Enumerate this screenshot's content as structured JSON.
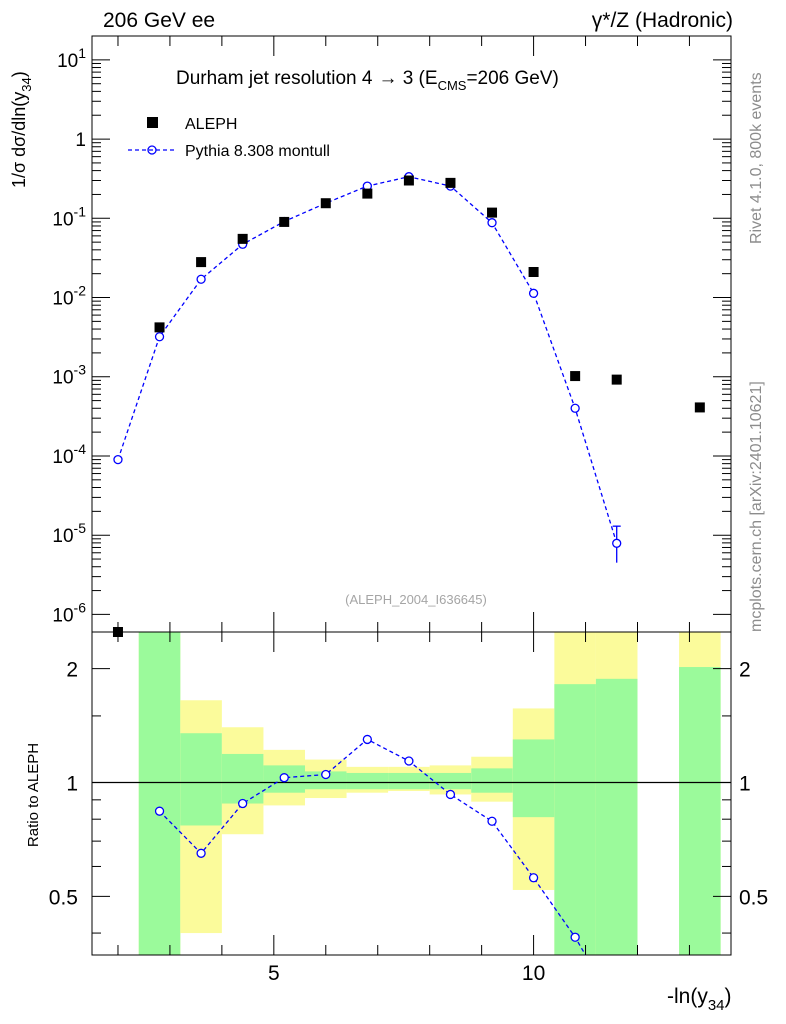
{
  "header": {
    "left": "206 GeV ee",
    "right": "γ*/Z (Hadronic)"
  },
  "side": {
    "rivet": "Rivet 4.1.0,  800k events",
    "mcplots": "mcplots.cern.ch [arXiv:2401.10621]"
  },
  "chart_data": [
    {
      "type": "scatter",
      "title": "Durham jet resolution 4 → 3 (E_CMS=206 GeV)",
      "title_parts": {
        "main": "Durham jet resolution 4",
        "arrow": "→",
        "mid": " 3 (E",
        "sub": "CMS",
        "end": "=206 GeV)"
      },
      "ylabel": "1/σ dσ/dln(y34)",
      "ylabel_parts": {
        "main": "1/σ  dσ/dln(y",
        "sub": "34",
        "end": ")"
      },
      "yscale": "log",
      "ylim": [
        6e-07,
        20
      ],
      "xlim": [
        1.5,
        13.8
      ],
      "ytick_labels": [
        {
          "m": "10",
          "e": "1"
        },
        {
          "m": "1",
          "e": ""
        },
        {
          "m": "10",
          "e": "-1"
        },
        {
          "m": "10",
          "e": "-2"
        },
        {
          "m": "10",
          "e": "-3"
        },
        {
          "m": "10",
          "e": "-4"
        },
        {
          "m": "10",
          "e": "-5"
        },
        {
          "m": "10",
          "e": "-6"
        }
      ],
      "watermark": "(ALEPH_2004_I636645)",
      "legend": {
        "placement": "top-left",
        "data_label": "ALEPH",
        "mc_label": "Pythia 8.308 montull"
      },
      "series": [
        {
          "name": "ALEPH",
          "x": [
            2.0,
            2.8,
            3.6,
            4.4,
            5.2,
            6.0,
            6.8,
            7.6,
            8.4,
            9.2,
            10.0,
            10.8,
            11.6,
            13.2
          ],
          "y": [
            6e-07,
            0.0042,
            0.028,
            0.055,
            0.09,
            0.155,
            0.205,
            0.3,
            0.28,
            0.118,
            0.021,
            0.00102,
            0.00092,
            0.00041
          ]
        },
        {
          "name": "Pythia 8.308 montull",
          "x": [
            2.0,
            2.8,
            3.6,
            4.4,
            5.2,
            6.0,
            6.8,
            7.6,
            8.4,
            9.2,
            10.0,
            10.8,
            11.6
          ],
          "y": [
            9e-05,
            0.0032,
            0.017,
            0.047,
            0.091,
            0.155,
            0.255,
            0.335,
            0.255,
            0.088,
            0.0113,
            0.0004,
            7.9e-06
          ]
        }
      ]
    },
    {
      "type": "line",
      "ylabel": "Ratio to ALEPH",
      "xlabel": "-ln(y34)",
      "xlabel_parts": {
        "main": "-ln(y",
        "sub": "34",
        "end": ")"
      },
      "yscale": "log",
      "ylim": [
        0.35,
        2.5
      ],
      "xlim": [
        1.5,
        13.8
      ],
      "xticks": [
        5,
        10
      ],
      "xtick_labels": [
        "5",
        "10"
      ],
      "yticks": [
        0.5,
        1,
        2
      ],
      "ytick_labels": [
        "0.5",
        "1",
        "2"
      ],
      "bands": [
        {
          "x0": 2.4,
          "x1": 3.2,
          "green": [
            0.35,
            2.5
          ],
          "yellow": [
            0.35,
            2.5
          ]
        },
        {
          "x0": 3.2,
          "x1": 4.0,
          "green": [
            0.77,
            1.35
          ],
          "yellow": [
            0.4,
            1.65
          ]
        },
        {
          "x0": 4.0,
          "x1": 4.8,
          "green": [
            0.88,
            1.19
          ],
          "yellow": [
            0.73,
            1.4
          ]
        },
        {
          "x0": 4.8,
          "x1": 5.6,
          "green": [
            0.94,
            1.11
          ],
          "yellow": [
            0.87,
            1.22
          ]
        },
        {
          "x0": 5.6,
          "x1": 6.4,
          "green": [
            0.96,
            1.07
          ],
          "yellow": [
            0.91,
            1.15
          ]
        },
        {
          "x0": 6.4,
          "x1": 7.2,
          "green": [
            0.96,
            1.06
          ],
          "yellow": [
            0.94,
            1.1
          ]
        },
        {
          "x0": 7.2,
          "x1": 8.0,
          "green": [
            0.96,
            1.06
          ],
          "yellow": [
            0.95,
            1.1
          ]
        },
        {
          "x0": 8.0,
          "x1": 8.8,
          "green": [
            0.96,
            1.06
          ],
          "yellow": [
            0.93,
            1.11
          ]
        },
        {
          "x0": 8.8,
          "x1": 9.6,
          "green": [
            0.94,
            1.09
          ],
          "yellow": [
            0.89,
            1.17
          ]
        },
        {
          "x0": 9.6,
          "x1": 10.4,
          "green": [
            0.81,
            1.3
          ],
          "yellow": [
            0.52,
            1.57
          ]
        },
        {
          "x0": 10.4,
          "x1": 11.2,
          "green": [
            0.35,
            1.82
          ],
          "yellow": [
            0.35,
            2.5
          ]
        },
        {
          "x0": 11.2,
          "x1": 12.0,
          "green": [
            0.35,
            1.88
          ],
          "yellow": [
            0.35,
            2.5
          ]
        },
        {
          "x0": 12.8,
          "x1": 13.6,
          "green": [
            0.35,
            2.02
          ],
          "yellow": [
            0.35,
            2.5
          ]
        }
      ],
      "ratio": {
        "x": [
          2.8,
          3.6,
          4.4,
          5.2,
          6.0,
          6.8,
          7.6,
          8.4,
          9.2,
          10.0,
          10.8
        ],
        "y": [
          0.84,
          0.65,
          0.88,
          1.03,
          1.05,
          1.3,
          1.14,
          0.93,
          0.79,
          0.56,
          0.39
        ]
      }
    }
  ],
  "colors": {
    "mc": "#0000ff",
    "green_band": "#9bfa9b",
    "yellow_band": "#fbfb9b",
    "data": "#000000",
    "side_text": "#8c8c8c"
  }
}
